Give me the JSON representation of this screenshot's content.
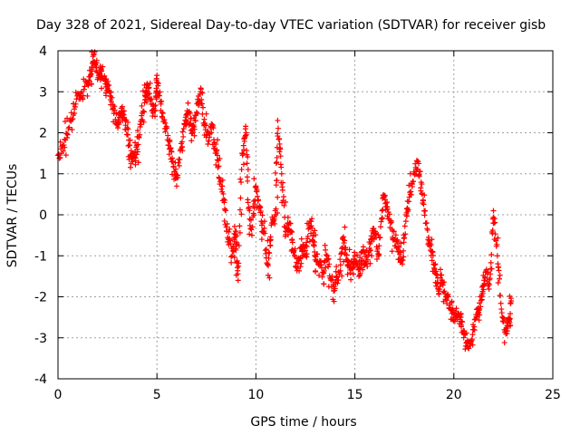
{
  "chart_data": {
    "type": "scatter",
    "title": "Day 328 of 2021, Sidereal Day-to-day VTEC variation (SDTVAR) for receiver gisb",
    "xlabel": "GPS time / hours",
    "ylabel": "SDTVAR / TECUs",
    "xlim": [
      0,
      25
    ],
    "ylim": [
      -4,
      4
    ],
    "x_ticks": [
      "0",
      "5",
      "10",
      "15",
      "20",
      "25"
    ],
    "y_ticks": [
      "-4",
      "-3",
      "-2",
      "-1",
      "0",
      "1",
      "2",
      "3",
      "4"
    ],
    "grid": true,
    "marker": "+",
    "color": "#ff0000",
    "series": [
      {
        "name": "SDTVAR",
        "points": [
          [
            0.0,
            1.45
          ],
          [
            0.3,
            1.7
          ],
          [
            0.6,
            2.3
          ],
          [
            0.9,
            2.7
          ],
          [
            1.2,
            3.0
          ],
          [
            1.5,
            3.2
          ],
          [
            1.7,
            3.6
          ],
          [
            1.8,
            3.9
          ],
          [
            2.0,
            3.3
          ],
          [
            2.2,
            3.5
          ],
          [
            2.4,
            3.3
          ],
          [
            2.6,
            3.0
          ],
          [
            2.8,
            2.6
          ],
          [
            3.0,
            2.2
          ],
          [
            3.2,
            2.6
          ],
          [
            3.4,
            2.3
          ],
          [
            3.6,
            1.7
          ],
          [
            3.8,
            1.4
          ],
          [
            4.0,
            1.6
          ],
          [
            4.2,
            2.2
          ],
          [
            4.4,
            2.8
          ],
          [
            4.5,
            3.2
          ],
          [
            4.7,
            2.7
          ],
          [
            4.9,
            2.4
          ],
          [
            5.0,
            3.4
          ],
          [
            5.2,
            2.7
          ],
          [
            5.4,
            2.1
          ],
          [
            5.6,
            1.8
          ],
          [
            5.8,
            1.3
          ],
          [
            6.0,
            0.9
          ],
          [
            6.2,
            1.6
          ],
          [
            6.4,
            2.2
          ],
          [
            6.6,
            2.5
          ],
          [
            6.8,
            2.0
          ],
          [
            7.0,
            2.5
          ],
          [
            7.2,
            3.0
          ],
          [
            7.4,
            2.2
          ],
          [
            7.6,
            1.8
          ],
          [
            7.8,
            2.2
          ],
          [
            8.0,
            1.5
          ],
          [
            8.2,
            0.8
          ],
          [
            8.4,
            0.3
          ],
          [
            8.6,
            -0.6
          ],
          [
            8.8,
            -1.0
          ],
          [
            9.0,
            -0.4
          ],
          [
            9.1,
            -1.6
          ],
          [
            9.3,
            1.5
          ],
          [
            9.5,
            2.0
          ],
          [
            9.6,
            0.3
          ],
          [
            9.8,
            -0.5
          ],
          [
            10.0,
            0.7
          ],
          [
            10.2,
            0.2
          ],
          [
            10.4,
            -0.4
          ],
          [
            10.6,
            -1.2
          ],
          [
            10.8,
            -0.2
          ],
          [
            11.0,
            0.0
          ],
          [
            11.1,
            2.3
          ],
          [
            11.3,
            1.0
          ],
          [
            11.5,
            -0.4
          ],
          [
            11.7,
            -0.2
          ],
          [
            11.9,
            -0.9
          ],
          [
            12.1,
            -1.3
          ],
          [
            12.3,
            -0.8
          ],
          [
            12.5,
            -1.0
          ],
          [
            12.7,
            -0.3
          ],
          [
            12.9,
            -0.5
          ],
          [
            13.0,
            -1.0
          ],
          [
            13.2,
            -1.2
          ],
          [
            13.4,
            -1.4
          ],
          [
            13.6,
            -1.0
          ],
          [
            13.8,
            -1.6
          ],
          [
            14.0,
            -1.8
          ],
          [
            14.2,
            -1.4
          ],
          [
            14.4,
            -0.6
          ],
          [
            14.6,
            -1.1
          ],
          [
            14.8,
            -1.3
          ],
          [
            15.0,
            -1.0
          ],
          [
            15.2,
            -1.5
          ],
          [
            15.4,
            -0.9
          ],
          [
            15.6,
            -1.2
          ],
          [
            15.8,
            -0.6
          ],
          [
            16.0,
            -0.4
          ],
          [
            16.2,
            -1.0
          ],
          [
            16.4,
            0.4
          ],
          [
            16.6,
            0.2
          ],
          [
            16.8,
            -0.2
          ],
          [
            17.0,
            -0.6
          ],
          [
            17.2,
            -0.9
          ],
          [
            17.4,
            -1.2
          ],
          [
            17.6,
            0.0
          ],
          [
            17.8,
            0.5
          ],
          [
            18.0,
            1.0
          ],
          [
            18.2,
            1.3
          ],
          [
            18.4,
            0.5
          ],
          [
            18.6,
            -0.2
          ],
          [
            18.8,
            -0.7
          ],
          [
            19.0,
            -1.3
          ],
          [
            19.2,
            -1.8
          ],
          [
            19.4,
            -1.6
          ],
          [
            19.6,
            -2.0
          ],
          [
            19.8,
            -2.2
          ],
          [
            20.0,
            -2.5
          ],
          [
            20.2,
            -2.4
          ],
          [
            20.4,
            -2.6
          ],
          [
            20.6,
            -3.2
          ],
          [
            20.8,
            -3.1
          ],
          [
            21.0,
            -2.8
          ],
          [
            21.2,
            -2.3
          ],
          [
            21.4,
            -2.0
          ],
          [
            21.6,
            -1.4
          ],
          [
            21.8,
            -1.7
          ],
          [
            22.0,
            0.1
          ],
          [
            22.2,
            -1.0
          ],
          [
            22.4,
            -2.3
          ],
          [
            22.6,
            -2.8
          ],
          [
            22.8,
            -2.6
          ],
          [
            22.9,
            -2.1
          ]
        ]
      }
    ]
  }
}
